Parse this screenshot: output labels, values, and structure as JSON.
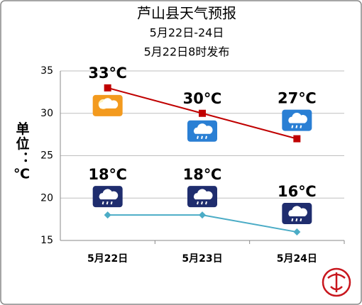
{
  "chart_data": {
    "type": "line",
    "title": "芦山县天气预报",
    "subtitle": [
      "5月22日-24日",
      "5月22日8时发布"
    ],
    "y_label": "单位：℃",
    "categories": [
      "5月22日",
      "5月23日",
      "5月24日"
    ],
    "series": [
      {
        "color": "#c00000",
        "marker": "square",
        "values": [
          33,
          30,
          27
        ],
        "value_labels": [
          "33℃",
          "30℃",
          "27℃"
        ]
      },
      {
        "color": "#4bacc6",
        "marker": "diamond",
        "values": [
          18,
          18,
          16
        ],
        "value_labels": [
          "18℃",
          "18℃",
          "16℃"
        ]
      }
    ],
    "ylim": [
      15,
      35
    ],
    "yticks": [
      15,
      20,
      25,
      30,
      35
    ],
    "grid": true
  }
}
